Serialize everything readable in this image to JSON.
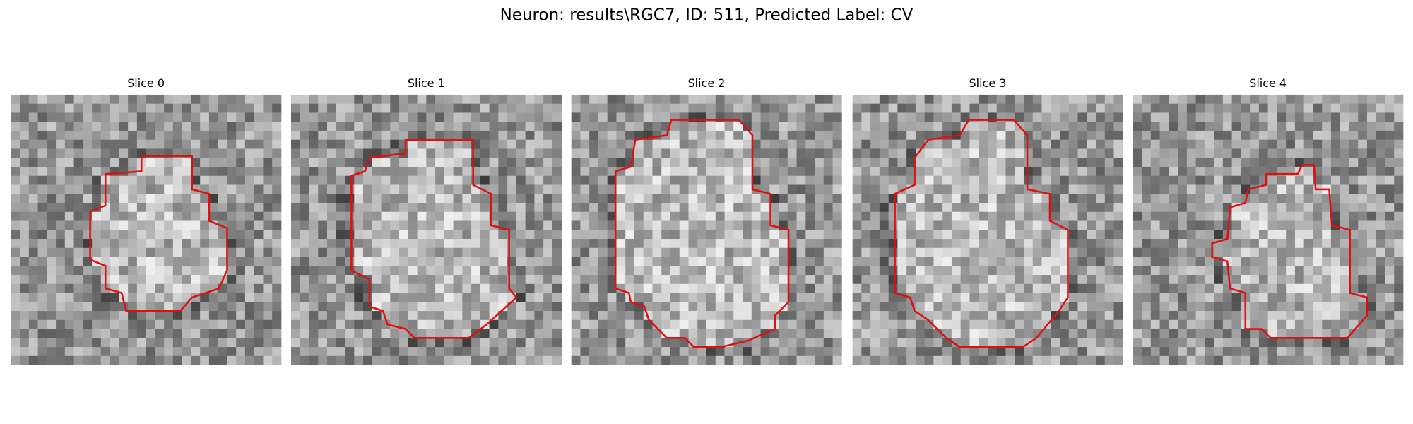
{
  "title": "Neuron: results\\RGC7, ID: 511, Predicted Label: CV",
  "panels": [
    {
      "title": "Slice 0"
    },
    {
      "title": "Slice 1"
    },
    {
      "title": "Slice 2"
    },
    {
      "title": "Slice 3"
    },
    {
      "title": "Slice 4"
    }
  ]
}
